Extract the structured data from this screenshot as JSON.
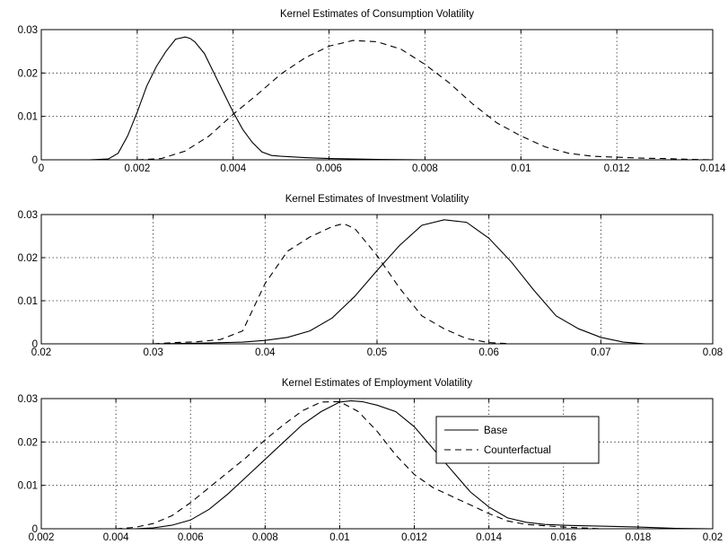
{
  "chart_data": [
    {
      "type": "line",
      "title": "Kernel Estimates of Consumption Volatility",
      "xlabel": "",
      "ylabel": "",
      "xlim": [
        0,
        0.014
      ],
      "ylim": [
        0,
        0.03
      ],
      "xticks": [
        0,
        0.002,
        0.004,
        0.006,
        0.008,
        0.01,
        0.012,
        0.014
      ],
      "xtick_labels": [
        "0",
        "0.002",
        "0.004",
        "0.006",
        "0.008",
        "0.01",
        "0.012",
        "0.014"
      ],
      "yticks": [
        0,
        0.01,
        0.02,
        0.03
      ],
      "ytick_labels": [
        "0",
        "0.01",
        "0.02",
        "0.03"
      ],
      "grid": true,
      "series": [
        {
          "style": "solid",
          "x": [
            0.001,
            0.0014,
            0.0016,
            0.0018,
            0.002,
            0.0022,
            0.0024,
            0.0026,
            0.0028,
            0.003,
            0.0031,
            0.0032,
            0.0034,
            0.0036,
            0.0038,
            0.004,
            0.0042,
            0.0044,
            0.0046,
            0.0048,
            0.005,
            0.0055,
            0.006,
            0.007,
            0.008
          ],
          "y": [
            0,
            0.0002,
            0.0015,
            0.0055,
            0.011,
            0.017,
            0.0215,
            0.025,
            0.0278,
            0.0283,
            0.028,
            0.0272,
            0.0245,
            0.02,
            0.0155,
            0.011,
            0.007,
            0.004,
            0.0018,
            0.001,
            0.0008,
            0.0005,
            0.0003,
            0.0001,
            0
          ]
        },
        {
          "style": "dashed",
          "x": [
            0.002,
            0.0025,
            0.003,
            0.0035,
            0.004,
            0.0045,
            0.005,
            0.0055,
            0.006,
            0.0065,
            0.007,
            0.0075,
            0.008,
            0.0085,
            0.009,
            0.0095,
            0.01,
            0.0105,
            0.011,
            0.0115,
            0.012,
            0.0125,
            0.013,
            0.0135,
            0.014
          ],
          "y": [
            0,
            0.0003,
            0.002,
            0.0055,
            0.0105,
            0.015,
            0.0198,
            0.0235,
            0.0262,
            0.0275,
            0.0272,
            0.0255,
            0.022,
            0.0178,
            0.0128,
            0.0085,
            0.0055,
            0.003,
            0.0015,
            0.0008,
            0.0006,
            0.0004,
            0.0003,
            0.0001,
            0
          ]
        }
      ]
    },
    {
      "type": "line",
      "title": "Kernel Estimates of Investment Volatility",
      "xlabel": "",
      "ylabel": "",
      "xlim": [
        0.02,
        0.08
      ],
      "ylim": [
        0,
        0.03
      ],
      "xticks": [
        0.02,
        0.03,
        0.04,
        0.05,
        0.06,
        0.07,
        0.08
      ],
      "xtick_labels": [
        "0.02",
        "0.03",
        "0.04",
        "0.05",
        "0.06",
        "0.07",
        "0.08"
      ],
      "yticks": [
        0,
        0.01,
        0.02,
        0.03
      ],
      "ytick_labels": [
        "0",
        "0.01",
        "0.02",
        "0.03"
      ],
      "grid": true,
      "series": [
        {
          "style": "solid",
          "x": [
            0.03,
            0.035,
            0.038,
            0.04,
            0.042,
            0.044,
            0.046,
            0.048,
            0.05,
            0.052,
            0.054,
            0.056,
            0.058,
            0.06,
            0.062,
            0.064,
            0.066,
            0.068,
            0.07,
            0.072,
            0.074
          ],
          "y": [
            0,
            0.0002,
            0.0004,
            0.0008,
            0.0015,
            0.003,
            0.006,
            0.011,
            0.017,
            0.0228,
            0.0275,
            0.0288,
            0.0282,
            0.0245,
            0.019,
            0.0125,
            0.0065,
            0.0035,
            0.0015,
            0.0004,
            0
          ]
        },
        {
          "style": "dashed",
          "x": [
            0.03,
            0.032,
            0.034,
            0.036,
            0.038,
            0.04,
            0.042,
            0.044,
            0.046,
            0.047,
            0.048,
            0.05,
            0.052,
            0.054,
            0.056,
            0.058,
            0.06,
            0.062
          ],
          "y": [
            0,
            0.0003,
            0.0005,
            0.001,
            0.003,
            0.014,
            0.0215,
            0.0248,
            0.0272,
            0.0279,
            0.0268,
            0.0205,
            0.013,
            0.0065,
            0.0035,
            0.0012,
            0.0003,
            0
          ]
        }
      ]
    },
    {
      "type": "line",
      "title": "Kernel Estimates of Employment Volatility",
      "xlabel": "",
      "ylabel": "",
      "xlim": [
        0.002,
        0.02
      ],
      "ylim": [
        0,
        0.03
      ],
      "xticks": [
        0.002,
        0.004,
        0.006,
        0.008,
        0.01,
        0.012,
        0.014,
        0.016,
        0.018,
        0.02
      ],
      "xtick_labels": [
        "0.002",
        "0.004",
        "0.006",
        "0.008",
        "0.01",
        "0.012",
        "0.014",
        "0.016",
        "0.018",
        "0.02"
      ],
      "yticks": [
        0,
        0.01,
        0.02,
        0.03
      ],
      "ytick_labels": [
        "0",
        "0.01",
        "0.02",
        "0.03"
      ],
      "grid": true,
      "legend": {
        "placement": "top-right",
        "entries": [
          {
            "label": "Base",
            "style": "solid"
          },
          {
            "label": "Counterfactual",
            "style": "dashed"
          }
        ]
      },
      "series": [
        {
          "name": "Base",
          "style": "solid",
          "x": [
            0.0045,
            0.005,
            0.0055,
            0.006,
            0.0065,
            0.007,
            0.0075,
            0.008,
            0.0085,
            0.009,
            0.0095,
            0.01,
            0.0103,
            0.0106,
            0.011,
            0.0115,
            0.012,
            0.0125,
            0.013,
            0.0135,
            0.014,
            0.0145,
            0.015,
            0.0155,
            0.016,
            0.017,
            0.018,
            0.019,
            0.02
          ],
          "y": [
            0,
            0.0002,
            0.0008,
            0.002,
            0.0045,
            0.008,
            0.012,
            0.016,
            0.02,
            0.024,
            0.027,
            0.0292,
            0.0295,
            0.0293,
            0.0285,
            0.027,
            0.0235,
            0.0185,
            0.0135,
            0.0085,
            0.005,
            0.0025,
            0.0015,
            0.001,
            0.0008,
            0.0006,
            0.0004,
            0.0001,
            0
          ]
        },
        {
          "name": "Counterfactual",
          "style": "dashed",
          "x": [
            0.004,
            0.0045,
            0.005,
            0.0055,
            0.006,
            0.0065,
            0.007,
            0.0075,
            0.008,
            0.0085,
            0.009,
            0.0095,
            0.01,
            0.0105,
            0.011,
            0.0115,
            0.012,
            0.0125,
            0.013,
            0.0135,
            0.014,
            0.0145,
            0.015,
            0.016,
            0.017
          ],
          "y": [
            0,
            0.0003,
            0.0012,
            0.003,
            0.006,
            0.0095,
            0.013,
            0.0165,
            0.0205,
            0.024,
            0.0272,
            0.0292,
            0.0293,
            0.027,
            0.0225,
            0.017,
            0.0125,
            0.0095,
            0.0075,
            0.0055,
            0.0035,
            0.0018,
            0.001,
            0.0004,
            0
          ]
        }
      ]
    }
  ]
}
